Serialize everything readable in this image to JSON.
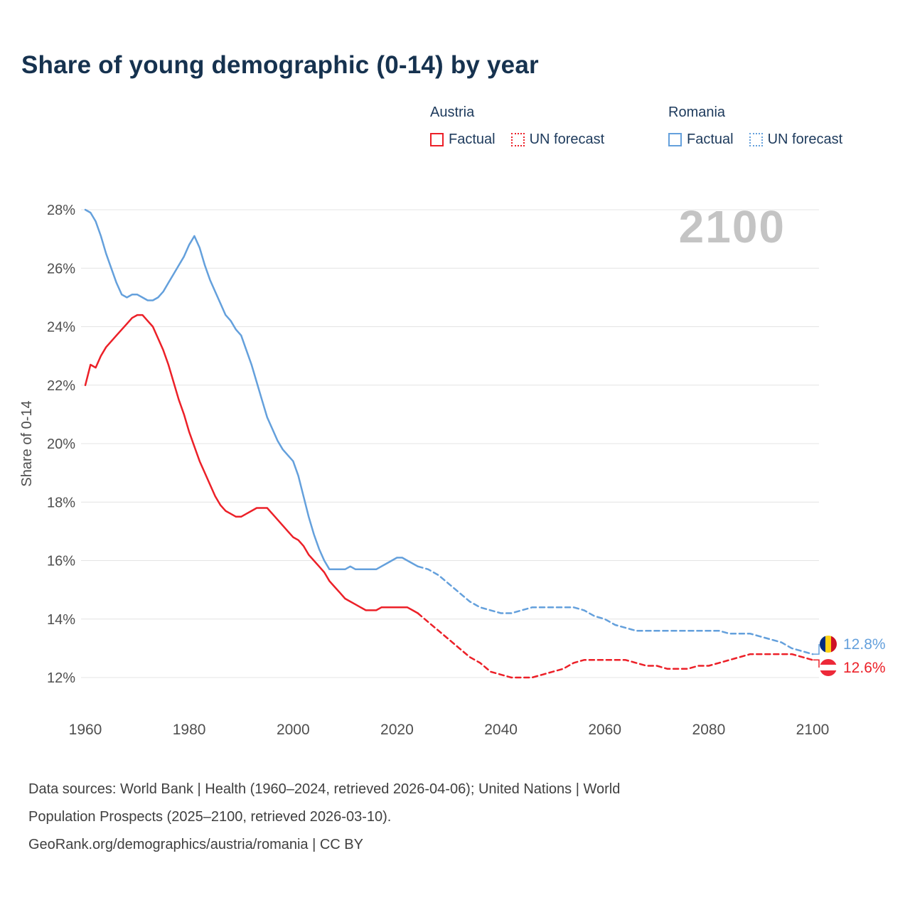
{
  "title": "Share of young demographic (0-14) by year",
  "watermark": "2100",
  "legend": {
    "groups": [
      {
        "label": "Austria",
        "items": [
          {
            "label": "Factual",
            "style": "solid"
          },
          {
            "label": "UN forecast",
            "style": "dotted"
          }
        ]
      },
      {
        "label": "Romania",
        "items": [
          {
            "label": "Factual",
            "style": "solid"
          },
          {
            "label": "UN forecast",
            "style": "dotted"
          }
        ]
      }
    ]
  },
  "colors": {
    "austria": "#ec2028",
    "romania": "#64a0dc",
    "title": "#16324f",
    "legend_text": "#1d3a5c",
    "axis_text": "#4f4f4f",
    "grid": "#e4e4e4",
    "watermark": "#c4c4c4",
    "footer_text": "#3f3f3f",
    "flags": {
      "ro": {
        "dir": "90deg",
        "stripes": [
          "#002B7F",
          "#FCD116",
          "#CE1126"
        ]
      },
      "at": {
        "dir": "180deg",
        "stripes": [
          "#ED2939",
          "#FFFFFF",
          "#ED2939"
        ]
      }
    }
  },
  "chart_data": {
    "type": "line",
    "title": "Share of young demographic (0-14) by year",
    "xlabel": "",
    "ylabel": "Share of 0-14",
    "xlim": [
      1960,
      2100
    ],
    "ylim": [
      12,
      28
    ],
    "x_ticks": [
      1960,
      1980,
      2000,
      2020,
      2040,
      2060,
      2080,
      2100
    ],
    "y_ticks": [
      12,
      14,
      16,
      18,
      20,
      22,
      24,
      26,
      28
    ],
    "y_tick_suffix": "%",
    "grid": "horizontal",
    "legend_position": "top-right",
    "series": [
      {
        "id": "romania-factual",
        "name": "Romania Factual",
        "color_key": "romania",
        "style": "solid",
        "points": [
          [
            1960,
            28.0
          ],
          [
            1961,
            27.9
          ],
          [
            1962,
            27.6
          ],
          [
            1963,
            27.1
          ],
          [
            1964,
            26.5
          ],
          [
            1965,
            26.0
          ],
          [
            1966,
            25.5
          ],
          [
            1967,
            25.1
          ],
          [
            1968,
            25.0
          ],
          [
            1969,
            25.1
          ],
          [
            1970,
            25.1
          ],
          [
            1971,
            25.0
          ],
          [
            1972,
            24.9
          ],
          [
            1973,
            24.9
          ],
          [
            1974,
            25.0
          ],
          [
            1975,
            25.2
          ],
          [
            1976,
            25.5
          ],
          [
            1977,
            25.8
          ],
          [
            1978,
            26.1
          ],
          [
            1979,
            26.4
          ],
          [
            1980,
            26.8
          ],
          [
            1981,
            27.1
          ],
          [
            1982,
            26.7
          ],
          [
            1983,
            26.1
          ],
          [
            1984,
            25.6
          ],
          [
            1985,
            25.2
          ],
          [
            1986,
            24.8
          ],
          [
            1987,
            24.4
          ],
          [
            1988,
            24.2
          ],
          [
            1989,
            23.9
          ],
          [
            1990,
            23.7
          ],
          [
            1991,
            23.2
          ],
          [
            1992,
            22.7
          ],
          [
            1993,
            22.1
          ],
          [
            1994,
            21.5
          ],
          [
            1995,
            20.9
          ],
          [
            1996,
            20.5
          ],
          [
            1997,
            20.1
          ],
          [
            1998,
            19.8
          ],
          [
            1999,
            19.6
          ],
          [
            2000,
            19.4
          ],
          [
            2001,
            18.9
          ],
          [
            2002,
            18.2
          ],
          [
            2003,
            17.5
          ],
          [
            2004,
            16.9
          ],
          [
            2005,
            16.4
          ],
          [
            2006,
            16.0
          ],
          [
            2007,
            15.7
          ],
          [
            2008,
            15.7
          ],
          [
            2009,
            15.7
          ],
          [
            2010,
            15.7
          ],
          [
            2011,
            15.8
          ],
          [
            2012,
            15.7
          ],
          [
            2013,
            15.7
          ],
          [
            2014,
            15.7
          ],
          [
            2015,
            15.7
          ],
          [
            2016,
            15.7
          ],
          [
            2017,
            15.8
          ],
          [
            2018,
            15.9
          ],
          [
            2019,
            16.0
          ],
          [
            2020,
            16.1
          ],
          [
            2021,
            16.1
          ],
          [
            2022,
            16.0
          ],
          [
            2023,
            15.9
          ],
          [
            2024,
            15.8
          ]
        ]
      },
      {
        "id": "romania-forecast",
        "name": "Romania UN forecast",
        "color_key": "romania",
        "style": "dashed",
        "points": [
          [
            2024,
            15.8
          ],
          [
            2026,
            15.7
          ],
          [
            2028,
            15.5
          ],
          [
            2030,
            15.2
          ],
          [
            2032,
            14.9
          ],
          [
            2034,
            14.6
          ],
          [
            2036,
            14.4
          ],
          [
            2038,
            14.3
          ],
          [
            2040,
            14.2
          ],
          [
            2042,
            14.2
          ],
          [
            2044,
            14.3
          ],
          [
            2046,
            14.4
          ],
          [
            2048,
            14.4
          ],
          [
            2050,
            14.4
          ],
          [
            2052,
            14.4
          ],
          [
            2054,
            14.4
          ],
          [
            2056,
            14.3
          ],
          [
            2058,
            14.1
          ],
          [
            2060,
            14.0
          ],
          [
            2062,
            13.8
          ],
          [
            2064,
            13.7
          ],
          [
            2066,
            13.6
          ],
          [
            2068,
            13.6
          ],
          [
            2070,
            13.6
          ],
          [
            2072,
            13.6
          ],
          [
            2074,
            13.6
          ],
          [
            2076,
            13.6
          ],
          [
            2078,
            13.6
          ],
          [
            2080,
            13.6
          ],
          [
            2082,
            13.6
          ],
          [
            2084,
            13.5
          ],
          [
            2086,
            13.5
          ],
          [
            2088,
            13.5
          ],
          [
            2090,
            13.4
          ],
          [
            2092,
            13.3
          ],
          [
            2094,
            13.2
          ],
          [
            2096,
            13.0
          ],
          [
            2098,
            12.9
          ],
          [
            2100,
            12.8
          ]
        ]
      },
      {
        "id": "austria-factual",
        "name": "Austria Factual",
        "color_key": "austria",
        "style": "solid",
        "points": [
          [
            1960,
            22.0
          ],
          [
            1961,
            22.7
          ],
          [
            1962,
            22.6
          ],
          [
            1963,
            23.0
          ],
          [
            1964,
            23.3
          ],
          [
            1965,
            23.5
          ],
          [
            1966,
            23.7
          ],
          [
            1967,
            23.9
          ],
          [
            1968,
            24.1
          ],
          [
            1969,
            24.3
          ],
          [
            1970,
            24.4
          ],
          [
            1971,
            24.4
          ],
          [
            1972,
            24.2
          ],
          [
            1973,
            24.0
          ],
          [
            1974,
            23.6
          ],
          [
            1975,
            23.2
          ],
          [
            1976,
            22.7
          ],
          [
            1977,
            22.1
          ],
          [
            1978,
            21.5
          ],
          [
            1979,
            21.0
          ],
          [
            1980,
            20.4
          ],
          [
            1981,
            19.9
          ],
          [
            1982,
            19.4
          ],
          [
            1983,
            19.0
          ],
          [
            1984,
            18.6
          ],
          [
            1985,
            18.2
          ],
          [
            1986,
            17.9
          ],
          [
            1987,
            17.7
          ],
          [
            1988,
            17.6
          ],
          [
            1989,
            17.5
          ],
          [
            1990,
            17.5
          ],
          [
            1991,
            17.6
          ],
          [
            1992,
            17.7
          ],
          [
            1993,
            17.8
          ],
          [
            1994,
            17.8
          ],
          [
            1995,
            17.8
          ],
          [
            1996,
            17.6
          ],
          [
            1997,
            17.4
          ],
          [
            1998,
            17.2
          ],
          [
            1999,
            17.0
          ],
          [
            2000,
            16.8
          ],
          [
            2001,
            16.7
          ],
          [
            2002,
            16.5
          ],
          [
            2003,
            16.2
          ],
          [
            2004,
            16.0
          ],
          [
            2005,
            15.8
          ],
          [
            2006,
            15.6
          ],
          [
            2007,
            15.3
          ],
          [
            2008,
            15.1
          ],
          [
            2009,
            14.9
          ],
          [
            2010,
            14.7
          ],
          [
            2011,
            14.6
          ],
          [
            2012,
            14.5
          ],
          [
            2013,
            14.4
          ],
          [
            2014,
            14.3
          ],
          [
            2015,
            14.3
          ],
          [
            2016,
            14.3
          ],
          [
            2017,
            14.4
          ],
          [
            2018,
            14.4
          ],
          [
            2019,
            14.4
          ],
          [
            2020,
            14.4
          ],
          [
            2021,
            14.4
          ],
          [
            2022,
            14.4
          ],
          [
            2023,
            14.3
          ],
          [
            2024,
            14.2
          ]
        ]
      },
      {
        "id": "austria-forecast",
        "name": "Austria UN forecast",
        "color_key": "austria",
        "style": "dashed",
        "points": [
          [
            2024,
            14.2
          ],
          [
            2026,
            13.9
          ],
          [
            2028,
            13.6
          ],
          [
            2030,
            13.3
          ],
          [
            2032,
            13.0
          ],
          [
            2034,
            12.7
          ],
          [
            2036,
            12.5
          ],
          [
            2038,
            12.2
          ],
          [
            2040,
            12.1
          ],
          [
            2042,
            12.0
          ],
          [
            2044,
            12.0
          ],
          [
            2046,
            12.0
          ],
          [
            2048,
            12.1
          ],
          [
            2050,
            12.2
          ],
          [
            2052,
            12.3
          ],
          [
            2054,
            12.5
          ],
          [
            2056,
            12.6
          ],
          [
            2058,
            12.6
          ],
          [
            2060,
            12.6
          ],
          [
            2062,
            12.6
          ],
          [
            2064,
            12.6
          ],
          [
            2066,
            12.5
          ],
          [
            2068,
            12.4
          ],
          [
            2070,
            12.4
          ],
          [
            2072,
            12.3
          ],
          [
            2074,
            12.3
          ],
          [
            2076,
            12.3
          ],
          [
            2078,
            12.4
          ],
          [
            2080,
            12.4
          ],
          [
            2082,
            12.5
          ],
          [
            2084,
            12.6
          ],
          [
            2086,
            12.7
          ],
          [
            2088,
            12.8
          ],
          [
            2090,
            12.8
          ],
          [
            2092,
            12.8
          ],
          [
            2094,
            12.8
          ],
          [
            2096,
            12.8
          ],
          [
            2098,
            12.7
          ],
          [
            2100,
            12.6
          ]
        ]
      }
    ]
  },
  "end_labels": [
    {
      "id": "ro",
      "series": "romania-forecast",
      "country": "Romania",
      "value": "12.8%",
      "color_key": "romania"
    },
    {
      "id": "at",
      "series": "austria-forecast",
      "country": "Austria",
      "value": "12.6%",
      "color_key": "austria"
    }
  ],
  "footer": {
    "lines": [
      "Data sources: World Bank | Health (1960–2024, retrieved 2026-04-06); United Nations | World",
      "Population Prospects (2025–2100, retrieved 2026-03-10).",
      "GeoRank.org/demographics/austria/romania | CC BY"
    ]
  }
}
